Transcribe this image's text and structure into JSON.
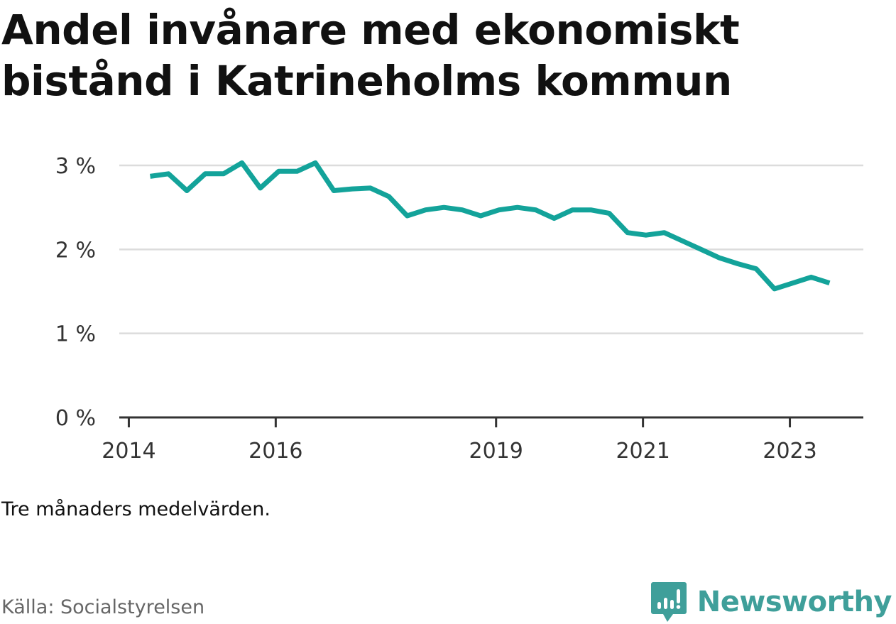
{
  "title": "Andel invånare med ekonomiskt bistånd i Katrineholms kommun",
  "note": "Tre månaders medelvärden.",
  "source": "Källa: Socialstyrelsen",
  "brand": {
    "name": "Newsworthy",
    "icon": "newsworthy-logo-icon",
    "color": "#3f9f9a"
  },
  "chart_data": {
    "type": "line",
    "title": "Andel invånare med ekonomiskt bistånd i Katrineholms kommun",
    "xlabel": "",
    "ylabel": "",
    "ylim": [
      0,
      3
    ],
    "yticks": [
      {
        "value": 0,
        "label": "0 %"
      },
      {
        "value": 1,
        "label": "1 %"
      },
      {
        "value": 2,
        "label": "2 %"
      },
      {
        "value": 3,
        "label": "3 %"
      }
    ],
    "xticks": [
      {
        "value": 2014,
        "label": "2014"
      },
      {
        "value": 2016,
        "label": "2016"
      },
      {
        "value": 2019,
        "label": "2019"
      },
      {
        "value": 2021,
        "label": "2021"
      },
      {
        "value": 2023,
        "label": "2023"
      }
    ],
    "xlim": [
      2013.87,
      2024.0
    ],
    "grid": true,
    "legend": "none",
    "color": "#13a39a",
    "series": [
      {
        "name": "",
        "x": [
          2014.29,
          2014.54,
          2014.79,
          2015.04,
          2015.29,
          2015.54,
          2015.79,
          2016.04,
          2016.29,
          2016.54,
          2016.79,
          2017.04,
          2017.29,
          2017.54,
          2017.79,
          2018.04,
          2018.29,
          2018.54,
          2018.79,
          2019.04,
          2019.29,
          2019.54,
          2019.79,
          2020.04,
          2020.29,
          2020.54,
          2020.79,
          2021.04,
          2021.29,
          2021.54,
          2021.79,
          2022.04,
          2022.29,
          2022.54,
          2022.79,
          2023.04,
          2023.29,
          2023.54
        ],
        "values": [
          2.87,
          2.9,
          2.7,
          2.9,
          2.9,
          3.03,
          2.73,
          2.93,
          2.93,
          3.03,
          2.7,
          2.72,
          2.73,
          2.63,
          2.4,
          2.47,
          2.5,
          2.47,
          2.4,
          2.47,
          2.5,
          2.47,
          2.37,
          2.47,
          2.47,
          2.43,
          2.2,
          2.17,
          2.2,
          2.1,
          2.0,
          1.9,
          1.83,
          1.77,
          1.53,
          1.6,
          1.67,
          1.6
        ]
      }
    ]
  }
}
